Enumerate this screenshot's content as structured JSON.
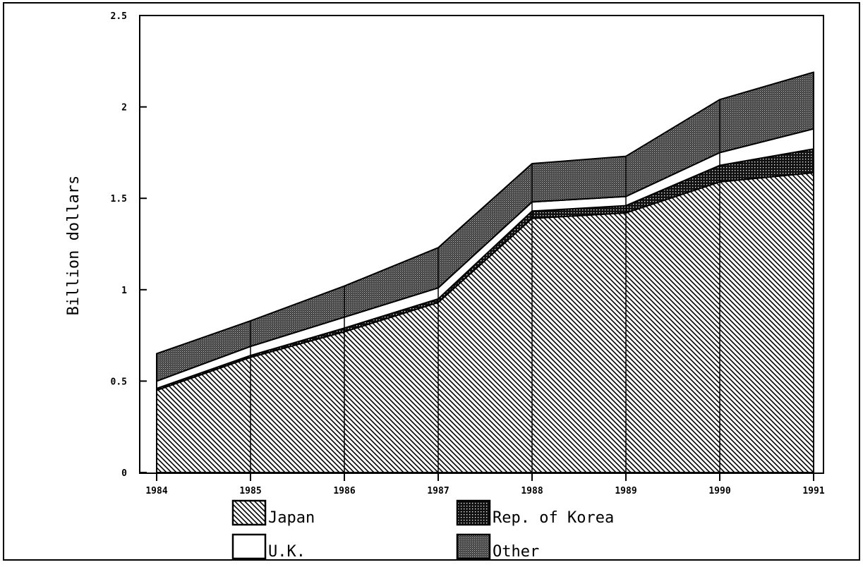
{
  "chart_data": {
    "type": "area",
    "stacked": true,
    "title": "",
    "xlabel": "",
    "ylabel": "Billion dollars",
    "x": [
      1984,
      1985,
      1986,
      1987,
      1988,
      1989,
      1990,
      1991
    ],
    "x_tick_labels": [
      "1984",
      "1985",
      "1986",
      "1987",
      "1988",
      "1989",
      "1990",
      "1991"
    ],
    "ylim": [
      0,
      2.5
    ],
    "y_ticks": [
      0,
      0.5,
      1,
      1.5,
      2,
      2.5
    ],
    "y_tick_labels": [
      "0",
      "0.5",
      "1",
      "1.5",
      "2",
      "2.5"
    ],
    "grid": false,
    "legend_position": "bottom",
    "series": [
      {
        "name": "Japan",
        "pattern": "diagonal-hatch",
        "values": [
          0.45,
          0.63,
          0.77,
          0.93,
          1.39,
          1.42,
          1.59,
          1.64
        ]
      },
      {
        "name": "Rep. of Korea",
        "pattern": "dark-dots",
        "values": [
          0.01,
          0.01,
          0.02,
          0.02,
          0.04,
          0.04,
          0.09,
          0.13
        ]
      },
      {
        "name": "U.K.",
        "pattern": "white",
        "values": [
          0.04,
          0.05,
          0.06,
          0.06,
          0.05,
          0.05,
          0.07,
          0.11
        ]
      },
      {
        "name": "Other",
        "pattern": "dense-stipple",
        "values": [
          0.15,
          0.14,
          0.17,
          0.22,
          0.21,
          0.22,
          0.29,
          0.31
        ]
      }
    ],
    "legend_order": [
      "Japan",
      "Rep. of Korea",
      "U.K.",
      "Other"
    ]
  }
}
